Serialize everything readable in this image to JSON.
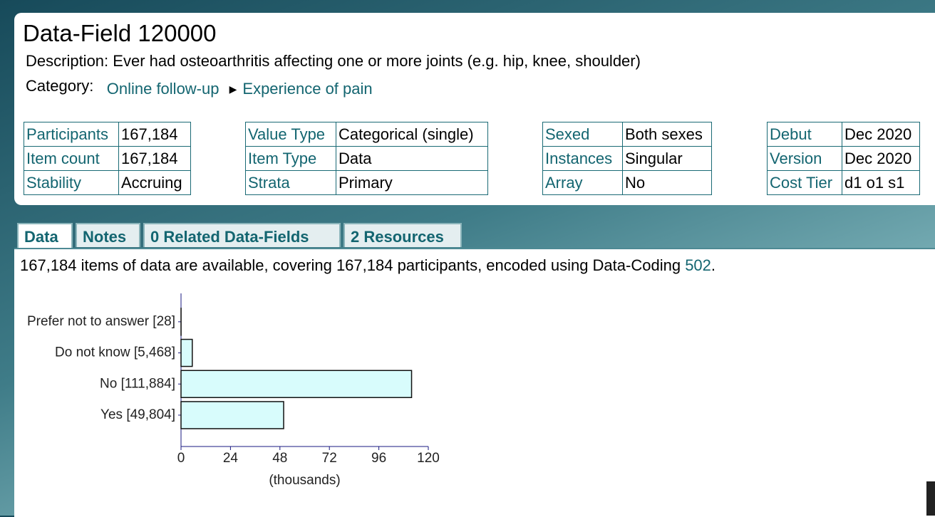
{
  "header": {
    "title": "Data-Field 120000",
    "description_label": "Description:",
    "description": "Ever had osteoarthritis affecting one or more joints (e.g. hip, knee, shoulder)",
    "category_label": "Category:",
    "breadcrumbs": [
      "Online follow-up",
      "Experience of pain"
    ]
  },
  "info_tables": [
    [
      [
        "Participants",
        "167,184"
      ],
      [
        "Item count",
        "167,184"
      ],
      [
        "Stability",
        "Accruing"
      ]
    ],
    [
      [
        "Value Type",
        "Categorical (single)"
      ],
      [
        "Item Type",
        "Data"
      ],
      [
        "Strata",
        "Primary"
      ]
    ],
    [
      [
        "Sexed",
        "Both sexes"
      ],
      [
        "Instances",
        "Singular"
      ],
      [
        "Array",
        "No"
      ]
    ],
    [
      [
        "Debut",
        "Dec 2020"
      ],
      [
        "Version",
        "Dec 2020"
      ],
      [
        "Cost Tier",
        "d1 o1 s1"
      ]
    ]
  ],
  "tabs": [
    "Data",
    "Notes",
    "0 Related Data-Fields",
    "2 Resources"
  ],
  "summary": {
    "text": "167,184 items of data are available, covering 167,184 participants, encoded using Data-Coding",
    "link": "502",
    "end": "."
  },
  "chart_data": {
    "type": "hbar",
    "categories": [
      "Prefer not to answer [28]",
      "Do not know [5,468]",
      "No [111,884]",
      "Yes [49,804]"
    ],
    "values": [
      0.028,
      5.468,
      111.884,
      49.804
    ],
    "color": "#d8fcfc",
    "x_label": "(thousands)",
    "xlim": [
      0,
      120
    ],
    "xticks": [
      0,
      24,
      48,
      72,
      96,
      120
    ]
  }
}
